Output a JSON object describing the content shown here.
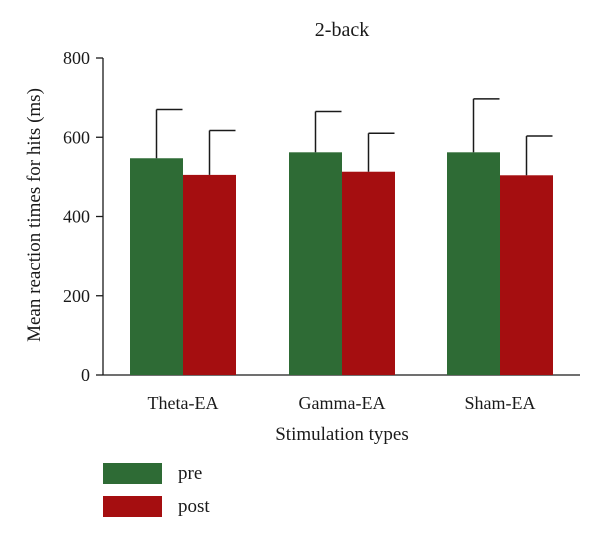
{
  "chart_data": {
    "type": "bar",
    "title": "2-back",
    "xlabel": "Stimulation types",
    "ylabel": "Mean reaction times for hits (ms)",
    "ylim": [
      0,
      800
    ],
    "yticks": [
      0,
      200,
      400,
      600,
      800
    ],
    "categories": [
      "Theta-EA",
      "Gamma-EA",
      "Sham-EA"
    ],
    "series": [
      {
        "name": "pre",
        "color": "#2e6b35",
        "values": [
          547,
          562,
          562
        ],
        "error_upper": [
          670,
          665,
          697
        ]
      },
      {
        "name": "post",
        "color": "#a50e10",
        "values": [
          505,
          513,
          504
        ],
        "error_upper": [
          617,
          610,
          603
        ]
      }
    ],
    "legend_position": "bottom-left",
    "grid": false
  }
}
